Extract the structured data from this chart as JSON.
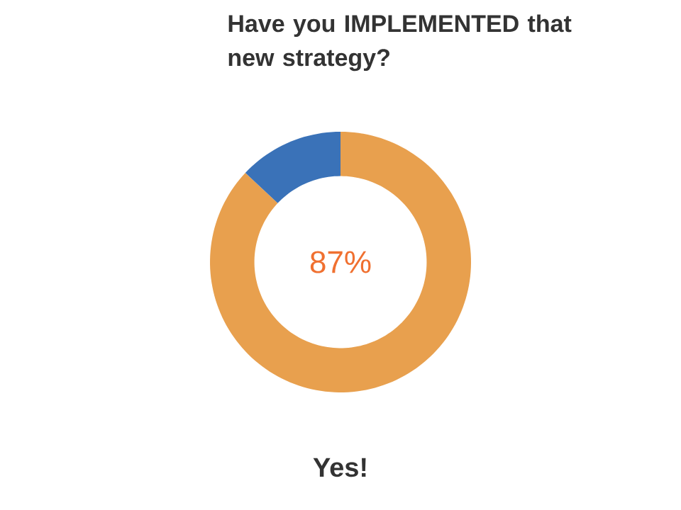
{
  "chart_data": {
    "type": "donut",
    "title": "Have you IMPLEMENTED that new strategy?",
    "categories": [
      null,
      null
    ],
    "values": [
      87,
      13
    ],
    "colors": [
      "#e8a04e",
      "#3a72b8"
    ],
    "value_labels": [
      "87%",
      null
    ],
    "annotations": [
      "Yes!"
    ]
  }
}
